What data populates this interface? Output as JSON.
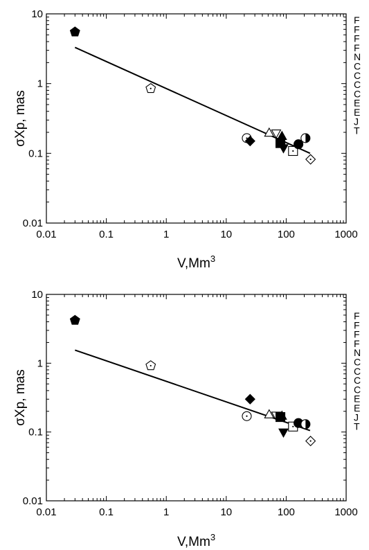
{
  "chart_data": [
    {
      "type": "scatter",
      "xlabel": "V,Mm",
      "xlabel_sup": "3",
      "ylabel": "σXp, mas",
      "xscale": "log",
      "yscale": "log",
      "xlim": [
        0.01,
        1000
      ],
      "ylim": [
        0.01,
        10
      ],
      "x_tick_labels": [
        "0.01",
        "0.1",
        "1",
        "10",
        "100",
        "1000"
      ],
      "y_tick_labels": [
        "0.01",
        "0.1",
        "1",
        "10"
      ],
      "legend_labels": [
        "F",
        "F",
        "F",
        "F",
        "N",
        "C",
        "C",
        "C",
        "C",
        "E",
        "E",
        "J",
        "T"
      ],
      "fit_line": {
        "x": [
          0.03,
          250
        ],
        "y": [
          3.3,
          0.1
        ]
      },
      "points": [
        {
          "marker": "pentagon-filled",
          "x": 0.03,
          "y": 5.5
        },
        {
          "marker": "pentagon-dot",
          "x": 0.55,
          "y": 0.85
        },
        {
          "marker": "circle-dot",
          "x": 22,
          "y": 0.165
        },
        {
          "marker": "diamond-filled",
          "x": 25,
          "y": 0.15
        },
        {
          "marker": "triangle-up-open",
          "x": 52,
          "y": 0.195
        },
        {
          "marker": "triangle-down-open",
          "x": 68,
          "y": 0.195
        },
        {
          "marker": "triangle-up-filled",
          "x": 85,
          "y": 0.175
        },
        {
          "marker": "triangle-down-filled",
          "x": 90,
          "y": 0.12
        },
        {
          "marker": "square-filled",
          "x": 80,
          "y": 0.14
        },
        {
          "marker": "square-dot",
          "x": 130,
          "y": 0.108
        },
        {
          "marker": "circle-filled",
          "x": 160,
          "y": 0.135
        },
        {
          "marker": "circle-half",
          "x": 210,
          "y": 0.165
        },
        {
          "marker": "diamond-dot",
          "x": 255,
          "y": 0.082
        }
      ]
    },
    {
      "type": "scatter",
      "xlabel": "V,Mm",
      "xlabel_sup": "3",
      "ylabel": "σXp, mas",
      "xscale": "log",
      "yscale": "log",
      "xlim": [
        0.01,
        1000
      ],
      "ylim": [
        0.01,
        10
      ],
      "x_tick_labels": [
        "0.01",
        "0.1",
        "1",
        "10",
        "100",
        "1000"
      ],
      "y_tick_labels": [
        "0.01",
        "0.1",
        "1",
        "10"
      ],
      "legend_labels": [
        "F",
        "F",
        "F",
        "F",
        "N",
        "C",
        "C",
        "C",
        "C",
        "E",
        "E",
        "J",
        "T"
      ],
      "fit_line": {
        "x": [
          0.03,
          250
        ],
        "y": [
          1.55,
          0.105
        ]
      },
      "points": [
        {
          "marker": "pentagon-filled",
          "x": 0.03,
          "y": 4.2
        },
        {
          "marker": "pentagon-dot",
          "x": 0.55,
          "y": 0.92
        },
        {
          "marker": "circle-dot",
          "x": 22,
          "y": 0.17
        },
        {
          "marker": "diamond-filled",
          "x": 25,
          "y": 0.3
        },
        {
          "marker": "triangle-up-open",
          "x": 52,
          "y": 0.178
        },
        {
          "marker": "triangle-down-open",
          "x": 68,
          "y": 0.175
        },
        {
          "marker": "triangle-up-filled",
          "x": 85,
          "y": 0.17
        },
        {
          "marker": "triangle-down-filled",
          "x": 90,
          "y": 0.1
        },
        {
          "marker": "square-filled",
          "x": 80,
          "y": 0.165
        },
        {
          "marker": "square-dot",
          "x": 130,
          "y": 0.12
        },
        {
          "marker": "circle-filled",
          "x": 160,
          "y": 0.135
        },
        {
          "marker": "circle-half",
          "x": 210,
          "y": 0.13
        },
        {
          "marker": "diamond-dot",
          "x": 255,
          "y": 0.074
        }
      ]
    }
  ]
}
